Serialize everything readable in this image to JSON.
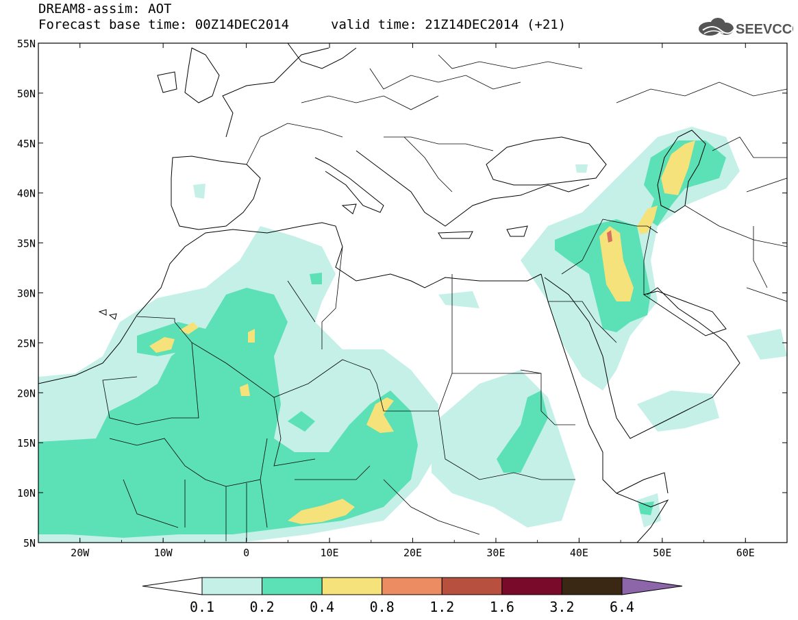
{
  "title": {
    "line1": "DREAM8-assim: AOT",
    "base_time": "Forecast base time: 00Z14DEC2014",
    "valid_time": "valid time: 21Z14DEC2014 (+21)"
  },
  "logo": {
    "text": "SEEVCCC",
    "icon": "cloud-logo-icon"
  },
  "map": {
    "lat_labels": [
      "55N",
      "50N",
      "45N",
      "40N",
      "35N",
      "30N",
      "25N",
      "20N",
      "15N",
      "10N",
      "5N"
    ],
    "lon_labels": [
      "20W",
      "10W",
      "0",
      "10E",
      "20E",
      "30E",
      "40E",
      "50E",
      "60E"
    ],
    "lon_range": [
      -25,
      65
    ],
    "lat_range": [
      5,
      55
    ]
  },
  "colorbar": {
    "labels": [
      "0.1",
      "0.2",
      "0.4",
      "0.8",
      "1.2",
      "1.6",
      "3.2",
      "6.4"
    ],
    "colors": [
      "#c4f0e8",
      "#5ce0b6",
      "#f5e27a",
      "#ec8c62",
      "#b8503f",
      "#7a0a2a",
      "#3b2814"
    ],
    "end_color": "#8c66a8"
  },
  "colors": {
    "light": "#c4f0e8",
    "medium": "#5ce0b6",
    "yellow": "#f5e27a",
    "red": "#d87060"
  }
}
